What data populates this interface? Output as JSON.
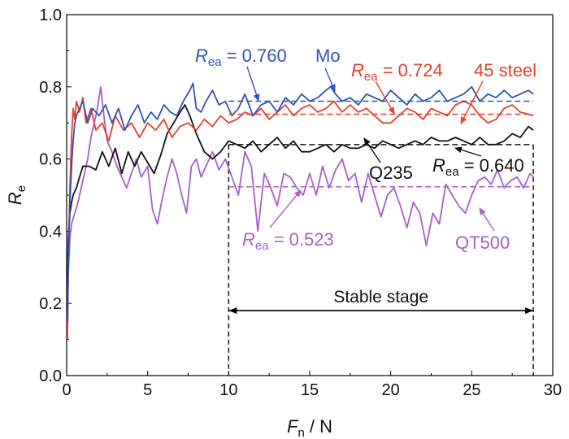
{
  "chart_data": {
    "type": "line",
    "xlabel": {
      "main": "F",
      "sub": "n",
      "unit": " / N"
    },
    "ylabel": {
      "main": "R",
      "sub": "e"
    },
    "xlim": [
      0,
      30
    ],
    "ylim": [
      0.0,
      1.0
    ],
    "xticks": [
      0,
      5,
      10,
      15,
      20,
      25,
      30
    ],
    "yticks": [
      0.0,
      0.2,
      0.4,
      0.6,
      0.8,
      1.0
    ],
    "xtick_labels": [
      "0",
      "5",
      "10",
      "15",
      "20",
      "25",
      "30"
    ],
    "ytick_labels": [
      "0.0",
      "0.2",
      "0.4",
      "0.6",
      "0.8",
      "1.0"
    ],
    "grid": false,
    "colors": {
      "Mo": "#2f53b8",
      "45 steel": "#e8402a",
      "Q235": "#111111",
      "QT500": "#a760c8"
    },
    "series": [
      {
        "name": "Mo",
        "x": [
          0.05,
          0.12,
          0.2,
          0.3,
          0.4,
          0.5,
          0.6,
          0.8,
          1.0,
          1.3,
          1.6,
          2.0,
          2.4,
          2.8,
          3.2,
          3.6,
          4.0,
          4.4,
          4.8,
          5.2,
          5.6,
          6.0,
          6.4,
          6.8,
          7.2,
          7.6,
          7.8,
          8.0,
          8.3,
          8.6,
          9.0,
          9.4,
          9.8,
          10.2,
          10.6,
          11.0,
          11.5,
          12.0,
          12.5,
          13.0,
          13.5,
          14.0,
          14.5,
          15.0,
          15.5,
          16.0,
          16.3,
          16.6,
          17.0,
          17.5,
          18.0,
          18.5,
          19.0,
          19.5,
          20.0,
          20.5,
          21.0,
          21.5,
          22.0,
          22.5,
          23.0,
          23.5,
          24.0,
          24.5,
          25.0,
          25.5,
          26.0,
          26.5,
          27.0,
          27.5,
          28.0,
          28.5,
          28.8
        ],
        "y": [
          0.15,
          0.35,
          0.48,
          0.58,
          0.65,
          0.7,
          0.72,
          0.74,
          0.76,
          0.7,
          0.74,
          0.72,
          0.75,
          0.7,
          0.74,
          0.68,
          0.72,
          0.75,
          0.7,
          0.73,
          0.71,
          0.75,
          0.73,
          0.72,
          0.76,
          0.79,
          0.81,
          0.74,
          0.73,
          0.76,
          0.79,
          0.75,
          0.76,
          0.72,
          0.74,
          0.78,
          0.72,
          0.75,
          0.76,
          0.73,
          0.77,
          0.75,
          0.78,
          0.76,
          0.77,
          0.79,
          0.8,
          0.78,
          0.76,
          0.77,
          0.75,
          0.78,
          0.77,
          0.76,
          0.79,
          0.77,
          0.75,
          0.78,
          0.76,
          0.77,
          0.79,
          0.76,
          0.77,
          0.78,
          0.8,
          0.76,
          0.78,
          0.77,
          0.79,
          0.77,
          0.78,
          0.79,
          0.78
        ]
      },
      {
        "name": "45 steel",
        "x": [
          0.05,
          0.1,
          0.2,
          0.3,
          0.4,
          0.5,
          0.6,
          0.8,
          1.0,
          1.2,
          1.5,
          1.8,
          2.2,
          2.6,
          3.0,
          3.5,
          4.0,
          4.5,
          5.0,
          5.5,
          6.0,
          6.5,
          7.0,
          7.5,
          8.0,
          8.5,
          9.0,
          9.5,
          10.0,
          10.5,
          11.0,
          11.5,
          12.0,
          12.5,
          13.0,
          13.5,
          14.0,
          14.5,
          15.0,
          15.5,
          16.0,
          16.5,
          17.0,
          17.5,
          18.0,
          18.5,
          19.0,
          19.5,
          20.0,
          20.5,
          21.0,
          21.5,
          22.0,
          22.5,
          23.0,
          23.5,
          24.0,
          24.5,
          25.0,
          25.5,
          26.0,
          26.5,
          27.0,
          27.5,
          28.0,
          28.8
        ],
        "y": [
          0.1,
          0.3,
          0.52,
          0.66,
          0.74,
          0.71,
          0.76,
          0.73,
          0.77,
          0.7,
          0.74,
          0.68,
          0.7,
          0.65,
          0.72,
          0.68,
          0.7,
          0.66,
          0.7,
          0.68,
          0.71,
          0.66,
          0.69,
          0.7,
          0.68,
          0.71,
          0.69,
          0.72,
          0.7,
          0.71,
          0.73,
          0.72,
          0.74,
          0.71,
          0.73,
          0.75,
          0.72,
          0.74,
          0.75,
          0.73,
          0.74,
          0.76,
          0.73,
          0.75,
          0.73,
          0.74,
          0.72,
          0.7,
          0.7,
          0.72,
          0.74,
          0.73,
          0.71,
          0.74,
          0.73,
          0.72,
          0.75,
          0.76,
          0.75,
          0.72,
          0.7,
          0.71,
          0.74,
          0.75,
          0.73,
          0.72
        ]
      },
      {
        "name": "Q235",
        "x": [
          0.05,
          0.1,
          0.2,
          0.3,
          0.4,
          0.6,
          0.8,
          1.0,
          1.4,
          1.8,
          2.2,
          2.6,
          3.0,
          3.4,
          3.8,
          4.2,
          4.6,
          5.0,
          5.4,
          5.8,
          6.2,
          6.6,
          7.0,
          7.3,
          7.6,
          8.0,
          8.5,
          9.0,
          9.5,
          10.0,
          10.5,
          11.0,
          11.5,
          12.0,
          12.5,
          13.0,
          13.5,
          14.0,
          14.5,
          15.0,
          15.5,
          16.0,
          16.5,
          17.0,
          17.5,
          18.0,
          18.5,
          19.0,
          19.5,
          20.0,
          20.5,
          21.0,
          21.5,
          22.0,
          22.5,
          23.0,
          23.5,
          24.0,
          24.5,
          25.0,
          25.5,
          26.0,
          26.5,
          27.0,
          27.5,
          28.0,
          28.5,
          28.8
        ],
        "y": [
          0.25,
          0.38,
          0.45,
          0.48,
          0.5,
          0.52,
          0.55,
          0.58,
          0.58,
          0.57,
          0.62,
          0.58,
          0.63,
          0.56,
          0.62,
          0.58,
          0.62,
          0.59,
          0.56,
          0.61,
          0.67,
          0.7,
          0.73,
          0.75,
          0.72,
          0.67,
          0.62,
          0.6,
          0.62,
          0.65,
          0.64,
          0.63,
          0.65,
          0.62,
          0.64,
          0.66,
          0.63,
          0.65,
          0.62,
          0.62,
          0.63,
          0.64,
          0.62,
          0.64,
          0.63,
          0.63,
          0.64,
          0.63,
          0.65,
          0.64,
          0.63,
          0.64,
          0.65,
          0.64,
          0.66,
          0.65,
          0.65,
          0.66,
          0.65,
          0.64,
          0.66,
          0.64,
          0.64,
          0.65,
          0.67,
          0.66,
          0.69,
          0.68
        ]
      },
      {
        "name": "QT500",
        "x": [
          0.05,
          0.1,
          0.2,
          0.3,
          0.5,
          0.7,
          0.9,
          1.1,
          1.3,
          1.5,
          1.7,
          1.9,
          2.1,
          2.3,
          2.5,
          2.8,
          3.1,
          3.4,
          3.7,
          4.0,
          4.3,
          4.6,
          5.0,
          5.3,
          5.6,
          5.9,
          6.2,
          6.5,
          6.8,
          7.1,
          7.4,
          7.7,
          8.0,
          8.3,
          8.6,
          9.0,
          9.4,
          9.8,
          10.2,
          10.6,
          11.0,
          11.4,
          11.8,
          12.2,
          12.6,
          13.0,
          13.4,
          13.8,
          14.2,
          14.6,
          15.0,
          15.4,
          15.8,
          16.2,
          16.6,
          17.0,
          17.4,
          17.8,
          18.2,
          18.6,
          19.0,
          19.4,
          19.8,
          20.2,
          20.6,
          21.0,
          21.4,
          21.8,
          22.2,
          22.6,
          23.0,
          23.4,
          23.8,
          24.2,
          24.6,
          25.0,
          25.4,
          25.8,
          26.2,
          26.6,
          27.0,
          27.4,
          27.8,
          28.2,
          28.6,
          28.8
        ],
        "y": [
          0.12,
          0.28,
          0.38,
          0.42,
          0.45,
          0.48,
          0.52,
          0.56,
          0.6,
          0.66,
          0.7,
          0.74,
          0.8,
          0.72,
          0.65,
          0.62,
          0.58,
          0.55,
          0.52,
          0.56,
          0.6,
          0.55,
          0.58,
          0.46,
          0.42,
          0.49,
          0.55,
          0.6,
          0.56,
          0.5,
          0.45,
          0.58,
          0.6,
          0.55,
          0.58,
          0.62,
          0.57,
          0.6,
          0.55,
          0.5,
          0.62,
          0.58,
          0.4,
          0.56,
          0.52,
          0.47,
          0.56,
          0.55,
          0.52,
          0.5,
          0.56,
          0.5,
          0.58,
          0.52,
          0.57,
          0.6,
          0.54,
          0.56,
          0.48,
          0.56,
          0.5,
          0.44,
          0.5,
          0.52,
          0.47,
          0.41,
          0.48,
          0.45,
          0.36,
          0.45,
          0.42,
          0.53,
          0.5,
          0.47,
          0.45,
          0.5,
          0.54,
          0.55,
          0.53,
          0.57,
          0.52,
          0.54,
          0.55,
          0.52,
          0.56,
          0.55
        ]
      }
    ],
    "reference_lines": [
      {
        "series": "Mo",
        "y": 0.76,
        "from_x": 10,
        "to_x": 28.8,
        "label_main": "R",
        "label_sub": "ea",
        "label_rest": " = 0.760"
      },
      {
        "series": "45 steel",
        "y": 0.724,
        "from_x": 10,
        "to_x": 28.8,
        "label_main": "R",
        "label_sub": "ea",
        "label_rest": " = 0.724"
      },
      {
        "series": "Q235",
        "y": 0.64,
        "from_x": 10,
        "to_x": 28.8,
        "label_main": "R",
        "label_sub": "ea",
        "label_rest": " = 0.640"
      },
      {
        "series": "QT500",
        "y": 0.523,
        "from_x": 10,
        "to_x": 28.8,
        "label_main": "R",
        "label_sub": "ea",
        "label_rest": " = 0.523"
      }
    ],
    "stable_stage": {
      "label": "Stable stage",
      "from_x": 10,
      "to_x": 28.8,
      "arrow_y": 0.18
    },
    "series_labels": [
      "Mo",
      "45 steel",
      "Q235",
      "QT500"
    ]
  }
}
